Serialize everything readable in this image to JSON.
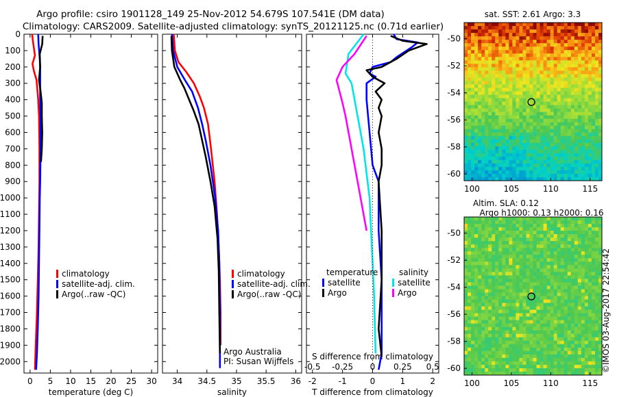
{
  "header": {
    "line1": "Argo profile: csiro 1901128_149 25-Nov-2012 54.679S 107.541E (DM data)",
    "line2": "Climatology: CARS2009. Satellite-adjusted climatology: synTS_20121125.nc (0.71d earlier)"
  },
  "colors": {
    "climatology": "#ff0000",
    "satellite": "#0000ff",
    "argo": "#000000",
    "sat_salinity": "#00e5e5",
    "argo_salinity": "#ff00ff"
  },
  "chart_data": [
    {
      "type": "line",
      "panel": "temperature",
      "xlabel": "temperature (deg C)",
      "xlim": [
        -1.5,
        31.5
      ],
      "ylim": [
        0,
        2070
      ],
      "yreversed": true,
      "xticks": [
        "0",
        "5",
        "10",
        "15",
        "20",
        "25",
        "30"
      ],
      "yticks": [
        "0",
        "100",
        "200",
        "300",
        "400",
        "500",
        "600",
        "700",
        "800",
        "900",
        "1000",
        "1100",
        "1200",
        "1300",
        "1400",
        "1500",
        "1600",
        "1700",
        "1800",
        "1900",
        "2000"
      ],
      "legend": [
        "climatology",
        "satellite-adj. clim.",
        "Argo(..raw -QC)"
      ],
      "series": [
        {
          "name": "climatology",
          "color": "#ff0000",
          "x": [
            0.5,
            0.8,
            1.2,
            0.6,
            0.9,
            1.6,
            2.0,
            2.2,
            2.3,
            2.3,
            2.2,
            2.1,
            1.9,
            1.7,
            1.4,
            1.2
          ],
          "y": [
            0,
            60,
            130,
            180,
            220,
            280,
            400,
            500,
            700,
            900,
            1100,
            1300,
            1500,
            1700,
            1900,
            2050
          ]
        },
        {
          "name": "satellite-adj. clim.",
          "color": "#0000ff",
          "x": [
            2.0,
            2.1,
            2.4,
            2.5,
            2.5,
            2.5,
            2.6,
            2.6,
            2.5,
            2.4,
            2.3,
            2.2,
            2.1,
            1.9,
            1.7,
            1.5
          ],
          "y": [
            0,
            60,
            150,
            210,
            280,
            400,
            500,
            700,
            900,
            1000,
            1200,
            1400,
            1600,
            1800,
            1950,
            2050
          ]
        },
        {
          "name": "Argo(..raw -QC)",
          "color": "#000000",
          "x": [
            3.1,
            3.0,
            2.4,
            2.5,
            2.2,
            2.6,
            2.9,
            2.9,
            3.0,
            2.9,
            2.7
          ],
          "y": [
            10,
            60,
            120,
            200,
            280,
            350,
            420,
            500,
            600,
            700,
            780
          ]
        }
      ]
    },
    {
      "type": "line",
      "panel": "salinity",
      "xlabel": "salinity",
      "xlim": [
        33.75,
        36.1
      ],
      "ylim": [
        0,
        2070
      ],
      "yreversed": true,
      "xticks": [
        "34",
        "34.5",
        "35",
        "35.5",
        "36"
      ],
      "legend": [
        "climatology",
        "satellite-adj. clim.",
        "Argo(..raw -QC)"
      ],
      "annotations": [
        "Argo Australia",
        "PI: Susan Wijffels"
      ],
      "series": [
        {
          "name": "climatology",
          "color": "#ff0000",
          "x": [
            33.94,
            33.96,
            34.02,
            34.15,
            34.28,
            34.38,
            34.45,
            34.52,
            34.57,
            34.63,
            34.67,
            34.7,
            34.72,
            34.73,
            34.73
          ],
          "y": [
            0,
            100,
            170,
            230,
            300,
            380,
            450,
            550,
            700,
            900,
            1100,
            1300,
            1500,
            1700,
            1900
          ]
        },
        {
          "name": "satellite-adj. clim.",
          "color": "#0000ff",
          "x": [
            33.91,
            33.93,
            34.0,
            34.13,
            34.25,
            34.35,
            34.42,
            34.48,
            34.56,
            34.64,
            34.69,
            34.71,
            34.72,
            34.72
          ],
          "y": [
            0,
            100,
            200,
            280,
            350,
            450,
            550,
            650,
            800,
            1000,
            1200,
            1400,
            1700,
            2040
          ]
        },
        {
          "name": "Argo(..raw -QC)",
          "color": "#000000",
          "x": [
            33.9,
            33.91,
            33.95,
            34.05,
            34.12,
            34.2,
            34.28,
            34.36,
            34.42,
            34.48,
            34.56,
            34.63,
            34.68,
            34.7,
            34.71,
            34.72
          ],
          "y": [
            10,
            100,
            200,
            280,
            330,
            400,
            470,
            550,
            650,
            750,
            900,
            1050,
            1250,
            1450,
            1700,
            1950
          ]
        }
      ]
    },
    {
      "type": "line",
      "panel": "difference",
      "xlabel": "T difference from climatology",
      "xlabel_top": "S difference from climatology",
      "xlim": [
        -2.2,
        2.2
      ],
      "ylim": [
        0,
        2070
      ],
      "yreversed": true,
      "xticks": [
        "-2",
        "-1",
        "0",
        "1",
        "2"
      ],
      "xticks_top": [
        "-0.5",
        "-0.25",
        "0",
        "0.25",
        "0.5"
      ],
      "legend_groups": [
        {
          "title": "temperature",
          "items": [
            "satellite",
            "Argo"
          ]
        },
        {
          "title": "salinity",
          "items": [
            "satellite",
            "Argo"
          ]
        }
      ],
      "series": [
        {
          "name": "temperature satellite",
          "color": "#0000ff",
          "x": [
            0.7,
            0.8,
            1.5,
            1.3,
            0.8,
            0.6,
            0.0,
            -0.1,
            0.1,
            -0.2,
            -0.2,
            -0.1,
            0.0,
            0.2,
            0.2,
            0.2,
            0.3,
            0.3,
            0.3,
            0.2
          ],
          "y": [
            0,
            30,
            50,
            80,
            140,
            170,
            200,
            240,
            260,
            300,
            400,
            600,
            800,
            900,
            1000,
            1200,
            1500,
            1800,
            1950,
            2050
          ]
        },
        {
          "name": "temperature Argo",
          "color": "#000000",
          "x": [
            0.6,
            1.0,
            1.8,
            1.2,
            0.8,
            0.3,
            -0.2,
            0.0,
            0.4,
            0.1,
            0.3,
            0.2,
            0.3,
            0.2,
            0.3,
            0.3,
            0.2,
            0.3,
            0.3,
            0.2,
            0.3
          ],
          "y": [
            10,
            40,
            60,
            100,
            150,
            200,
            220,
            260,
            300,
            350,
            400,
            450,
            500,
            600,
            700,
            800,
            900,
            1200,
            1500,
            1800,
            1970
          ]
        },
        {
          "name": "salinity satellite",
          "color": "#00e5e5",
          "x": [
            -0.3,
            -0.8,
            -0.9,
            -0.7,
            -0.6,
            -0.5,
            -0.4,
            -0.3,
            -0.2,
            -0.1,
            -0.05,
            0.0,
            0.05,
            0.1
          ],
          "y": [
            0,
            120,
            240,
            300,
            400,
            500,
            600,
            700,
            850,
            1000,
            1200,
            1400,
            1600,
            1950
          ]
        },
        {
          "name": "salinity Argo",
          "color": "#ff00ff",
          "x": [
            -0.2,
            -0.6,
            -1.0,
            -1.2,
            -1.1,
            -1.0,
            -0.9,
            -0.8,
            -0.7,
            -0.6,
            -0.5,
            -0.4,
            -0.3,
            -0.2
          ],
          "y": [
            10,
            120,
            200,
            280,
            350,
            420,
            500,
            600,
            700,
            800,
            900,
            1000,
            1100,
            1200
          ]
        }
      ]
    },
    {
      "type": "heatmap",
      "panel": "sst-map",
      "title": "sat. SST: 2.61 Argo: 3.3",
      "xlim": [
        99,
        116.5
      ],
      "ylim": [
        -60.5,
        -48.8
      ],
      "xticks": [
        "100",
        "105",
        "110",
        "115"
      ],
      "yticks": [
        "-50",
        "-52",
        "-54",
        "-56",
        "-58",
        "-60"
      ],
      "marker": {
        "lon": 107.541,
        "lat": -54.679
      }
    },
    {
      "type": "heatmap",
      "panel": "sla-map",
      "title": "Altim. SLA: 0.12",
      "subtitle": "Argo h1000: 0.13 h2000: 0.16",
      "xlim": [
        99,
        116.5
      ],
      "ylim": [
        -60.5,
        -48.8
      ],
      "xticks": [
        "100",
        "105",
        "110",
        "115"
      ],
      "yticks": [
        "-50",
        "-52",
        "-54",
        "-56",
        "-58",
        "-60"
      ],
      "marker": {
        "lon": 107.541,
        "lat": -54.679
      }
    }
  ],
  "footer": {
    "credit": "©IMOS 03-Aug-2017 22:54:42"
  }
}
